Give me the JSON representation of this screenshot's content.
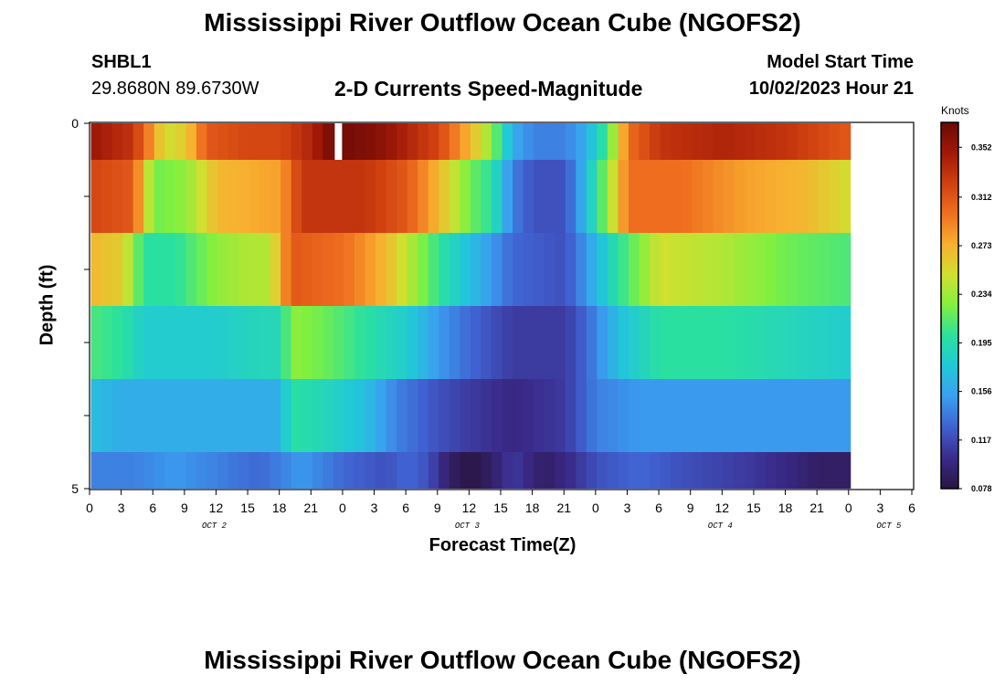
{
  "header": {
    "title": "Mississippi River Outflow Ocean Cube (NGOFS2)",
    "station": "SHBL1",
    "coords": "29.8680N  89.6730W",
    "subtitle": "2-D Currents Speed-Magnitude",
    "model_start_label": "Model Start Time",
    "model_start_value": "10/02/2023 Hour 21"
  },
  "footer": {
    "title": "Mississippi River Outflow Ocean Cube (NGOFS2)"
  },
  "colors": {
    "palette": [
      "#2a1440",
      "#3a2a8a",
      "#4060d0",
      "#3a9ef0",
      "#22c8d8",
      "#2ae0a0",
      "#80f040",
      "#d0e030",
      "#f8b030",
      "#f07020",
      "#d04010",
      "#a01808",
      "#6a0a06"
    ]
  },
  "chart_data": {
    "type": "heatmap",
    "title": "2-D Currents Speed-Magnitude",
    "xlabel": "Forecast Time(Z)",
    "ylabel": "Depth (ft)",
    "yticks": [
      "0",
      "5"
    ],
    "ylim": [
      0,
      5
    ],
    "xticks": [
      "0",
      "3",
      "6",
      "9",
      "12",
      "15",
      "18",
      "21",
      "0",
      "3",
      "6",
      "9",
      "12",
      "15",
      "18",
      "21",
      "0",
      "3",
      "6",
      "9",
      "12",
      "15",
      "18",
      "21",
      "0",
      "3",
      "6"
    ],
    "day_labels": [
      "OCT 2",
      "OCT 3",
      "OCT 4",
      "OCT 5"
    ],
    "colorbar": {
      "units": "Knots",
      "ticks": [
        "0.352",
        "0.312",
        "0.273",
        "0.234",
        "0.195",
        "0.156",
        "0.117",
        "0.078"
      ],
      "range": [
        0.078,
        0.372
      ]
    },
    "rows": [
      {
        "depth_band": "0-0.5",
        "knots": [
          [
            0,
            0.35
          ],
          [
            4,
            0.33
          ],
          [
            6,
            0.28
          ],
          [
            7,
            0.25
          ],
          [
            9,
            0.26
          ],
          [
            11,
            0.31
          ],
          [
            15,
            0.32
          ],
          [
            18,
            0.32
          ],
          [
            21,
            0.34
          ],
          [
            23,
            0.37
          ],
          [
            27,
            0.36
          ],
          [
            33,
            0.32
          ],
          [
            36,
            0.27
          ],
          [
            38,
            0.23
          ],
          [
            40,
            0.16
          ],
          [
            42,
            0.14
          ],
          [
            45,
            0.14
          ],
          [
            47,
            0.16
          ],
          [
            49,
            0.21
          ],
          [
            51,
            0.3
          ],
          [
            54,
            0.33
          ],
          [
            60,
            0.34
          ],
          [
            66,
            0.33
          ],
          [
            72,
            0.31
          ]
        ]
      },
      {
        "depth_band": "0.5-1.5",
        "knots": [
          [
            0,
            0.32
          ],
          [
            4,
            0.31
          ],
          [
            6,
            0.22
          ],
          [
            9,
            0.23
          ],
          [
            12,
            0.27
          ],
          [
            18,
            0.28
          ],
          [
            20,
            0.33
          ],
          [
            26,
            0.33
          ],
          [
            30,
            0.31
          ],
          [
            33,
            0.27
          ],
          [
            36,
            0.22
          ],
          [
            38,
            0.2
          ],
          [
            40,
            0.14
          ],
          [
            42,
            0.12
          ],
          [
            45,
            0.12
          ],
          [
            47,
            0.17
          ],
          [
            49,
            0.23
          ],
          [
            51,
            0.3
          ],
          [
            56,
            0.3
          ],
          [
            62,
            0.28
          ],
          [
            68,
            0.27
          ],
          [
            72,
            0.25
          ]
        ]
      },
      {
        "depth_band": "1.5-2.5",
        "knots": [
          [
            0,
            0.27
          ],
          [
            3,
            0.26
          ],
          [
            5,
            0.2
          ],
          [
            8,
            0.2
          ],
          [
            12,
            0.23
          ],
          [
            15,
            0.24
          ],
          [
            17,
            0.24
          ],
          [
            19,
            0.31
          ],
          [
            24,
            0.3
          ],
          [
            28,
            0.27
          ],
          [
            31,
            0.23
          ],
          [
            34,
            0.19
          ],
          [
            38,
            0.15
          ],
          [
            40,
            0.13
          ],
          [
            45,
            0.12
          ],
          [
            47,
            0.15
          ],
          [
            50,
            0.2
          ],
          [
            54,
            0.25
          ],
          [
            60,
            0.24
          ],
          [
            66,
            0.22
          ],
          [
            72,
            0.21
          ]
        ]
      },
      {
        "depth_band": "2.5-3.5",
        "knots": [
          [
            0,
            0.21
          ],
          [
            3,
            0.2
          ],
          [
            5,
            0.18
          ],
          [
            8,
            0.18
          ],
          [
            12,
            0.18
          ],
          [
            16,
            0.19
          ],
          [
            18,
            0.19
          ],
          [
            19,
            0.23
          ],
          [
            22,
            0.22
          ],
          [
            26,
            0.2
          ],
          [
            30,
            0.18
          ],
          [
            33,
            0.15
          ],
          [
            36,
            0.13
          ],
          [
            40,
            0.11
          ],
          [
            45,
            0.11
          ],
          [
            47,
            0.13
          ],
          [
            50,
            0.17
          ],
          [
            54,
            0.2
          ],
          [
            60,
            0.2
          ],
          [
            66,
            0.19
          ],
          [
            72,
            0.18
          ]
        ]
      },
      {
        "depth_band": "3.5-4.5",
        "knots": [
          [
            0,
            0.17
          ],
          [
            3,
            0.16
          ],
          [
            6,
            0.16
          ],
          [
            10,
            0.16
          ],
          [
            15,
            0.16
          ],
          [
            18,
            0.16
          ],
          [
            19,
            0.2
          ],
          [
            22,
            0.19
          ],
          [
            26,
            0.17
          ],
          [
            29,
            0.14
          ],
          [
            33,
            0.12
          ],
          [
            36,
            0.11
          ],
          [
            40,
            0.1
          ],
          [
            45,
            0.11
          ],
          [
            48,
            0.14
          ],
          [
            52,
            0.15
          ],
          [
            60,
            0.15
          ],
          [
            66,
            0.15
          ],
          [
            72,
            0.15
          ]
        ]
      },
      {
        "depth_band": "4.5-5",
        "knots": [
          [
            0,
            0.14
          ],
          [
            4,
            0.14
          ],
          [
            8,
            0.15
          ],
          [
            12,
            0.14
          ],
          [
            16,
            0.13
          ],
          [
            18,
            0.14
          ],
          [
            20,
            0.15
          ],
          [
            24,
            0.13
          ],
          [
            28,
            0.12
          ],
          [
            30,
            0.13
          ],
          [
            32,
            0.12
          ],
          [
            34,
            0.09
          ],
          [
            36,
            0.08
          ],
          [
            38,
            0.09
          ],
          [
            40,
            0.11
          ],
          [
            43,
            0.09
          ],
          [
            45,
            0.1
          ],
          [
            48,
            0.12
          ],
          [
            52,
            0.13
          ],
          [
            56,
            0.12
          ],
          [
            62,
            0.11
          ],
          [
            66,
            0.1
          ],
          [
            69,
            0.09
          ],
          [
            72,
            0.09
          ]
        ]
      }
    ],
    "gaps": [
      {
        "row": 0,
        "hour": 23
      }
    ]
  }
}
